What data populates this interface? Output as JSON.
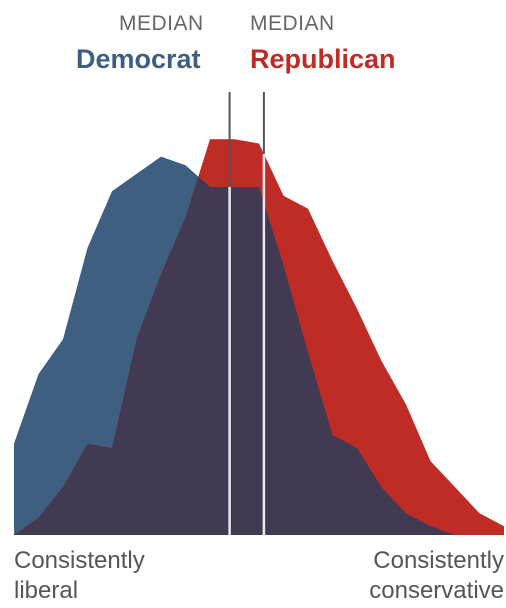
{
  "labels": {
    "median_dem": "MEDIAN",
    "dem_name": "Democrat",
    "median_rep": "MEDIAN",
    "rep_name": "Republican",
    "left_end_line1": "Consistently",
    "left_end_line2": "liberal",
    "right_end_line1": "Consistently",
    "right_end_line2": "conservative"
  },
  "colors": {
    "democrat": "#3f5f80",
    "republican": "#be2c25",
    "overlap": "#423a52",
    "median_line": "#555555",
    "median_text": "#666666"
  },
  "chart_data": {
    "type": "area",
    "xlim": [
      -10,
      10
    ],
    "ylim": [
      0,
      10
    ],
    "series": [
      {
        "name": "Democrat",
        "x": [
          -10,
          -9,
          -8,
          -7,
          -6,
          -5,
          -4,
          -3,
          -2,
          -1,
          0,
          1,
          2,
          3,
          4,
          5,
          6,
          7,
          8,
          9,
          10
        ],
        "values": [
          2.1,
          3.7,
          4.5,
          6.6,
          7.9,
          8.3,
          8.7,
          8.5,
          8.0,
          8.0,
          8.0,
          6.2,
          4.2,
          2.3,
          2.0,
          1.1,
          0.5,
          0.2,
          0.0,
          0.0,
          0.0
        ]
      },
      {
        "name": "Republican",
        "x": [
          -10,
          -9,
          -8,
          -7,
          -6,
          -5,
          -4,
          -3,
          -2,
          -1,
          0,
          1,
          2,
          3,
          4,
          5,
          6,
          7,
          8,
          9,
          10
        ],
        "values": [
          0.0,
          0.4,
          1.1,
          2.1,
          2.0,
          4.5,
          6.0,
          7.3,
          9.1,
          9.1,
          9.0,
          7.8,
          7.5,
          6.3,
          5.2,
          4.0,
          3.0,
          1.7,
          1.1,
          0.5,
          0.2
        ]
      }
    ],
    "medians": {
      "Democrat": -1.2,
      "Republican": 0.2
    }
  }
}
